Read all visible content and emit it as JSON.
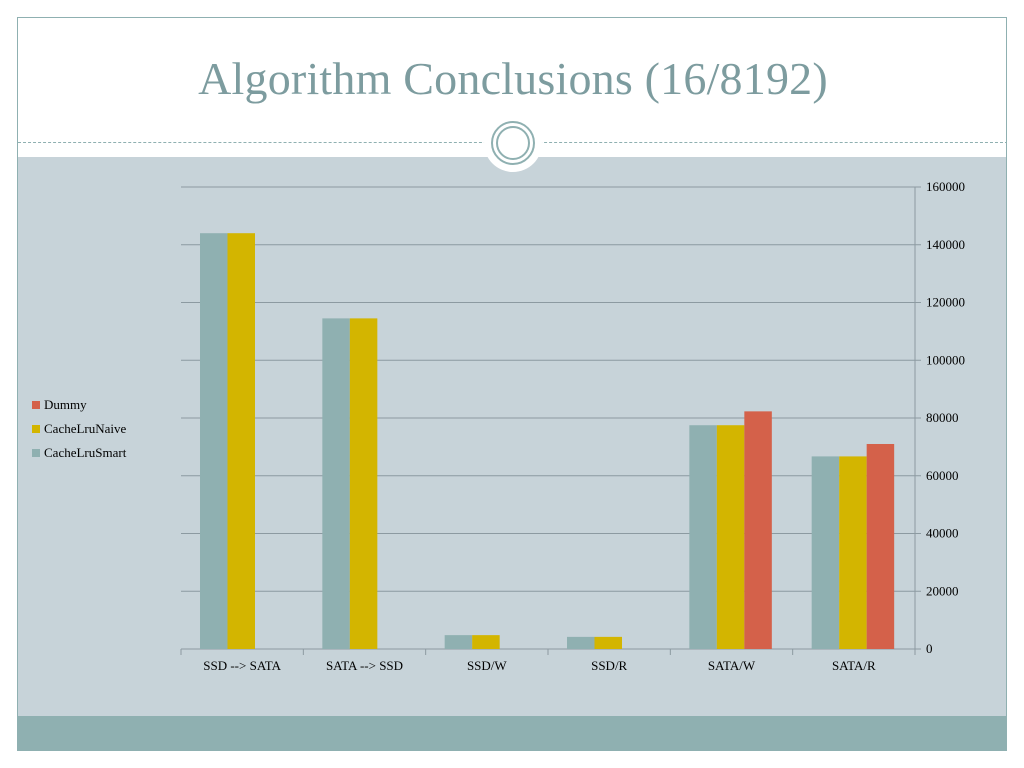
{
  "slide": {
    "title": "Algorithm Conclusions (16/8192)"
  },
  "colors": {
    "accent": "#8fb0b1",
    "title": "#7d9c9f",
    "content_background": "#c7d3d9",
    "gridline": "#8c9aa1"
  },
  "decorations": {
    "divider_icon": "double-ring-icon"
  },
  "chart_data": {
    "type": "bar",
    "title": "",
    "xlabel": "",
    "ylabel": "",
    "categories": [
      "SSD --> SATA",
      "SATA --> SSD",
      "SSD/W",
      "SSD/R",
      "SATA/W",
      "SATA/R"
    ],
    "series": [
      {
        "name": "CacheLruSmart",
        "color": "#8fb0b1",
        "values": [
          144000,
          114500,
          4800,
          4200,
          77500,
          66700
        ]
      },
      {
        "name": "CacheLruNaive",
        "color": "#d3b500",
        "values": [
          144000,
          114500,
          4800,
          4200,
          77500,
          66700
        ]
      },
      {
        "name": "Dummy",
        "color": "#d4614a",
        "values": [
          null,
          null,
          null,
          null,
          82300,
          71000
        ]
      }
    ],
    "legend_order": [
      "Dummy",
      "CacheLruNaive",
      "CacheLruSmart"
    ],
    "ylim": [
      0,
      160000
    ],
    "yticks": [
      "0",
      "20000",
      "40000",
      "60000",
      "80000",
      "100000",
      "120000",
      "140000",
      "160000"
    ],
    "y_axis_side": "right",
    "grid": true,
    "legend_position": "left"
  }
}
